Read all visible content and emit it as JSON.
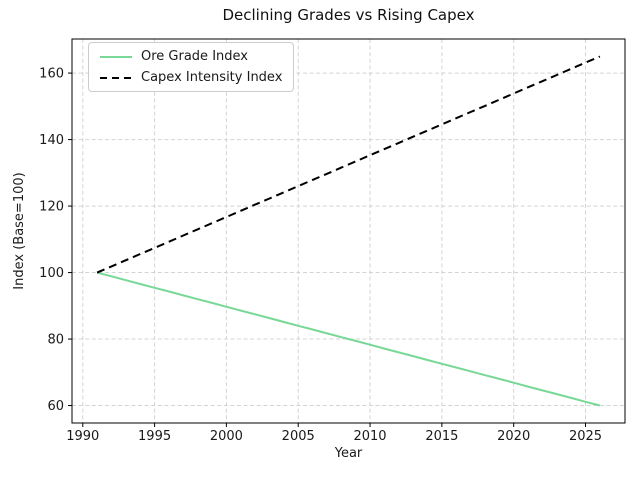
{
  "figure": {
    "background": "#ffffff",
    "spine_color": "#000000",
    "text_color": "#1a1a1a"
  },
  "chart_data": {
    "type": "line",
    "title": "Declining Grades vs Rising Capex",
    "xlabel": "Year",
    "ylabel": "Index (Base=100)",
    "x": [
      1991,
      1992,
      1993,
      1994,
      1995,
      1996,
      1997,
      1998,
      1999,
      2000,
      2001,
      2002,
      2003,
      2004,
      2005,
      2006,
      2007,
      2008,
      2009,
      2010,
      2011,
      2012,
      2013,
      2014,
      2015,
      2016,
      2017,
      2018,
      2019,
      2020,
      2021,
      2022,
      2023,
      2024,
      2025,
      2026
    ],
    "series": [
      {
        "name": "Ore Grade Index",
        "color": "#78d896",
        "style": "solid",
        "values": [
          100,
          98.86,
          97.71,
          96.57,
          95.43,
          94.29,
          93.14,
          92,
          90.86,
          89.71,
          88.57,
          87.43,
          86.29,
          85.14,
          84,
          82.86,
          81.71,
          80.57,
          79.43,
          78.29,
          77.14,
          76,
          74.86,
          73.71,
          72.57,
          71.43,
          70.29,
          69.14,
          68,
          66.86,
          65.71,
          64.57,
          63.43,
          62.29,
          61.14,
          60
        ]
      },
      {
        "name": "Capex Intensity Index",
        "color": "#000000",
        "style": "dashed",
        "values": [
          100,
          101.86,
          103.71,
          105.57,
          107.43,
          109.29,
          111.14,
          113,
          114.86,
          116.71,
          118.57,
          120.43,
          122.29,
          124.14,
          126,
          127.86,
          129.71,
          131.57,
          133.43,
          135.29,
          137.14,
          139,
          140.86,
          142.71,
          144.57,
          146.43,
          148.29,
          150.14,
          152,
          153.86,
          155.71,
          157.57,
          159.43,
          161.29,
          163.14,
          165
        ]
      }
    ],
    "xlim": [
      1989.25,
      2027.75
    ],
    "ylim": [
      54.75,
      170.25
    ],
    "xticks": [
      1990,
      1995,
      2000,
      2005,
      2010,
      2015,
      2020,
      2025
    ],
    "yticks": [
      60,
      80,
      100,
      120,
      140,
      160
    ],
    "grid": true,
    "grid_color": "#d4d4d4",
    "legend_position": "upper left"
  }
}
